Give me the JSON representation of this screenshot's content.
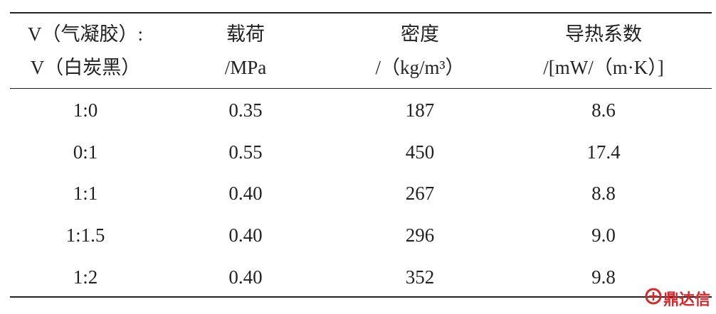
{
  "table": {
    "header": [
      [
        "V（气凝胶）:",
        "V（白炭黑）"
      ],
      [
        "载荷",
        "/MPa"
      ],
      [
        "密度",
        "/（kg/m³）"
      ],
      [
        "导热系数",
        "/[mW/（m·K）]"
      ]
    ],
    "rows": [
      [
        "1:0",
        "0.35",
        "187",
        "8.6"
      ],
      [
        "0:1",
        "0.55",
        "450",
        "17.4"
      ],
      [
        "1:1",
        "0.40",
        "267",
        "8.8"
      ],
      [
        "1:1.5",
        "0.40",
        "296",
        "9.0"
      ],
      [
        "1:2",
        "0.40",
        "352",
        "9.8"
      ]
    ]
  },
  "watermark": "鼎达信"
}
